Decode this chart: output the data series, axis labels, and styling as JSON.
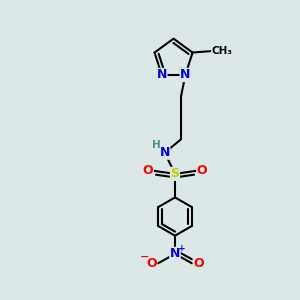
{
  "bg_color": "#dce8e8",
  "atom_colors": {
    "C": "#000000",
    "N": "#0000ee",
    "O": "#ff0000",
    "S": "#cccc00",
    "H": "#4a9090"
  },
  "bond_color": "#000000",
  "bond_width": 1.5,
  "font_size_atom": 9,
  "font_size_small": 7.5
}
